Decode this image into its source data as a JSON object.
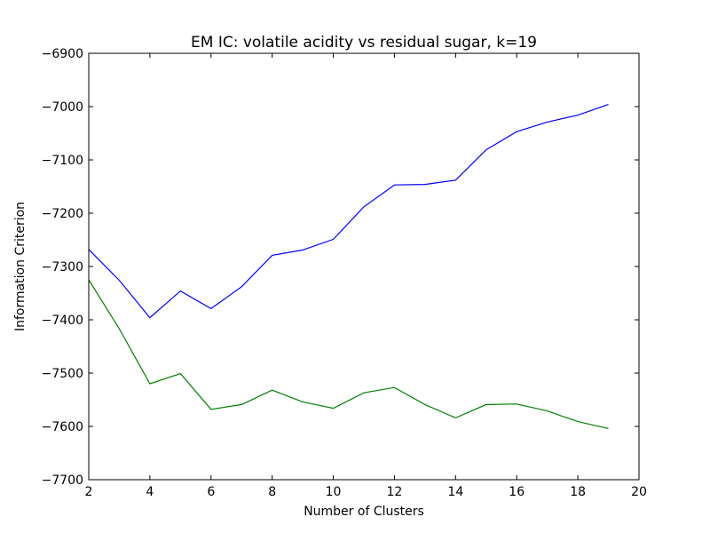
{
  "chart_data": {
    "type": "line",
    "title": "EM IC: volatile acidity vs residual sugar, k=19",
    "xlabel": "Number of Clusters",
    "ylabel": "Information Criterion",
    "xlim": [
      2,
      20
    ],
    "ylim": [
      -7700,
      -6900
    ],
    "xticks": [
      2,
      4,
      6,
      8,
      10,
      12,
      14,
      16,
      18,
      20
    ],
    "yticks": [
      -6900,
      -7000,
      -7100,
      -7200,
      -7300,
      -7400,
      -7500,
      -7600,
      -7700
    ],
    "xtick_labels": [
      "2",
      "4",
      "6",
      "8",
      "10",
      "12",
      "14",
      "16",
      "18",
      "20"
    ],
    "ytick_labels": [
      "−6900",
      "−7000",
      "−7100",
      "−7200",
      "−7300",
      "−7400",
      "−7500",
      "−7600",
      "−7700"
    ],
    "grid": false,
    "x": [
      2,
      3,
      4,
      5,
      6,
      7,
      8,
      9,
      10,
      11,
      12,
      13,
      14,
      15,
      16,
      17,
      18,
      19
    ],
    "series": [
      {
        "color": "#0000ff",
        "values": [
          -7268,
          -7326,
          -7396,
          -7346,
          -7379,
          -7338,
          -7279,
          -7269,
          -7249,
          -7188,
          -7147,
          -7146,
          -7138,
          -7081,
          -7047,
          -7029,
          -7016,
          -6996
        ]
      },
      {
        "color": "#008000",
        "values": [
          -7325,
          -7417,
          -7520,
          -7501,
          -7568,
          -7559,
          -7532,
          -7554,
          -7566,
          -7537,
          -7527,
          -7559,
          -7584,
          -7559,
          -7558,
          -7571,
          -7591,
          -7604
        ]
      }
    ]
  }
}
